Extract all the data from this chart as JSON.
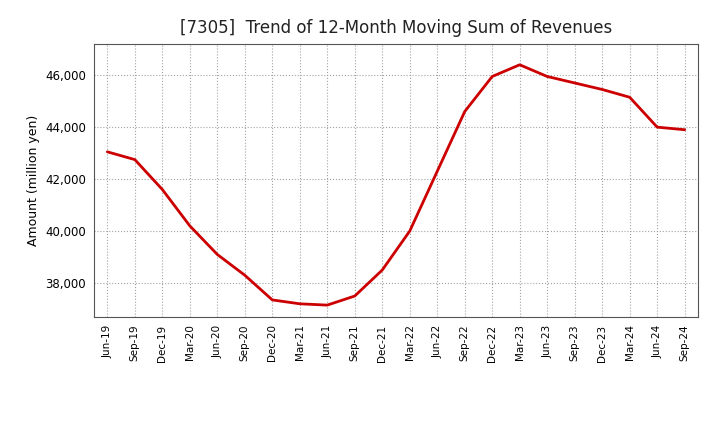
{
  "title": "[7305]  Trend of 12-Month Moving Sum of Revenues",
  "ylabel": "Amount (million yen)",
  "line_color": "#cc0000",
  "line_width": 2.0,
  "background_color": "#ffffff",
  "grid_color": "#999999",
  "tick_labels": [
    "Jun-19",
    "Sep-19",
    "Dec-19",
    "Mar-20",
    "Jun-20",
    "Sep-20",
    "Dec-20",
    "Mar-21",
    "Jun-21",
    "Sep-21",
    "Dec-21",
    "Mar-22",
    "Jun-22",
    "Sep-22",
    "Dec-22",
    "Mar-23",
    "Jun-23",
    "Sep-23",
    "Dec-23",
    "Mar-24",
    "Jun-24",
    "Sep-24"
  ],
  "values": [
    43050,
    42750,
    41600,
    40200,
    39100,
    38300,
    37350,
    37200,
    37150,
    37500,
    38500,
    40000,
    42300,
    44600,
    45950,
    46400,
    45950,
    45700,
    45450,
    45150,
    44000,
    43900
  ],
  "ylim": [
    36700,
    47200
  ],
  "yticks": [
    38000,
    40000,
    42000,
    44000,
    46000
  ],
  "title_fontsize": 12,
  "ylabel_fontsize": 9,
  "xtick_fontsize": 7.5,
  "ytick_fontsize": 8.5
}
